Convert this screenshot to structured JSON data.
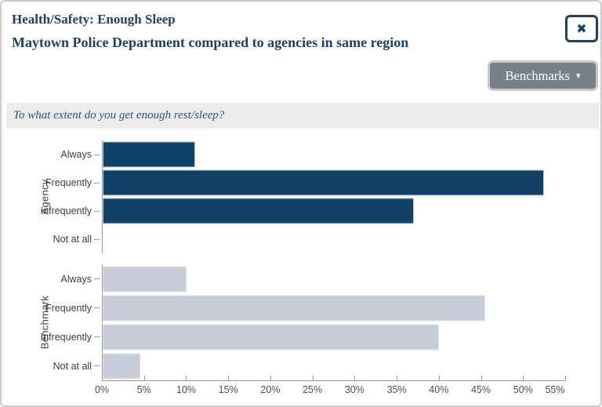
{
  "header": {
    "title": "Health/Safety: Enough Sleep",
    "subtitle": "Maytown Police Department compared to agencies in same region"
  },
  "toolbar": {
    "benchmarks_label": "Benchmarks"
  },
  "icons": {
    "close": "✖",
    "dropdown_caret": "▾"
  },
  "colors": {
    "navy_text": "#1d4166",
    "agency_bar": "#0f4266",
    "benchmark_bar": "#c6cdd8",
    "question_bg": "#ececec",
    "button_bg": "#778089",
    "axis": "#9b9b9b"
  },
  "chart_data": {
    "type": "bar",
    "orientation": "horizontal",
    "title": "To what extent do you get enough rest/sleep?",
    "categories": [
      "Always",
      "Frequently",
      "Infrequently",
      "Not at all"
    ],
    "series": [
      {
        "name": "Agency",
        "color": "#0f4266",
        "values": [
          11,
          52.5,
          37,
          0
        ]
      },
      {
        "name": "Benchmark",
        "color": "#c6cdd8",
        "values": [
          10,
          45.5,
          40,
          4.5
        ]
      }
    ],
    "xlim": [
      0,
      55
    ],
    "x_ticks": [
      "0%",
      "5%",
      "10%",
      "15%",
      "20%",
      "25%",
      "30%",
      "35%",
      "40%",
      "45%",
      "50%",
      "55%"
    ],
    "xlabel": "",
    "ylabel": "",
    "grid": false,
    "legend": "none"
  }
}
